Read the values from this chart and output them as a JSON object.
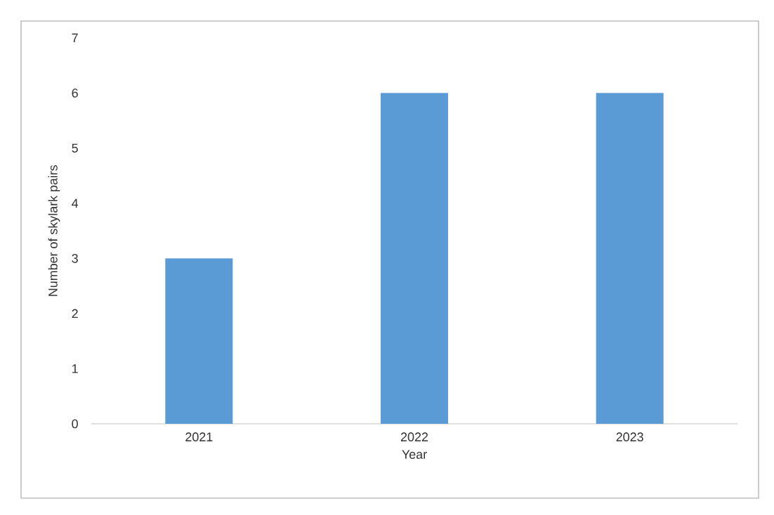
{
  "chart_data": {
    "type": "bar",
    "xlabel": "Year",
    "ylabel": "Number of skylark pairs",
    "categories": [
      "2021",
      "2022",
      "2023"
    ],
    "values": [
      3,
      6,
      6
    ],
    "color": "#5b9bd5",
    "ylim": [
      0,
      7
    ],
    "yticks": [
      0,
      1,
      2,
      3,
      4,
      5,
      6,
      7
    ]
  }
}
